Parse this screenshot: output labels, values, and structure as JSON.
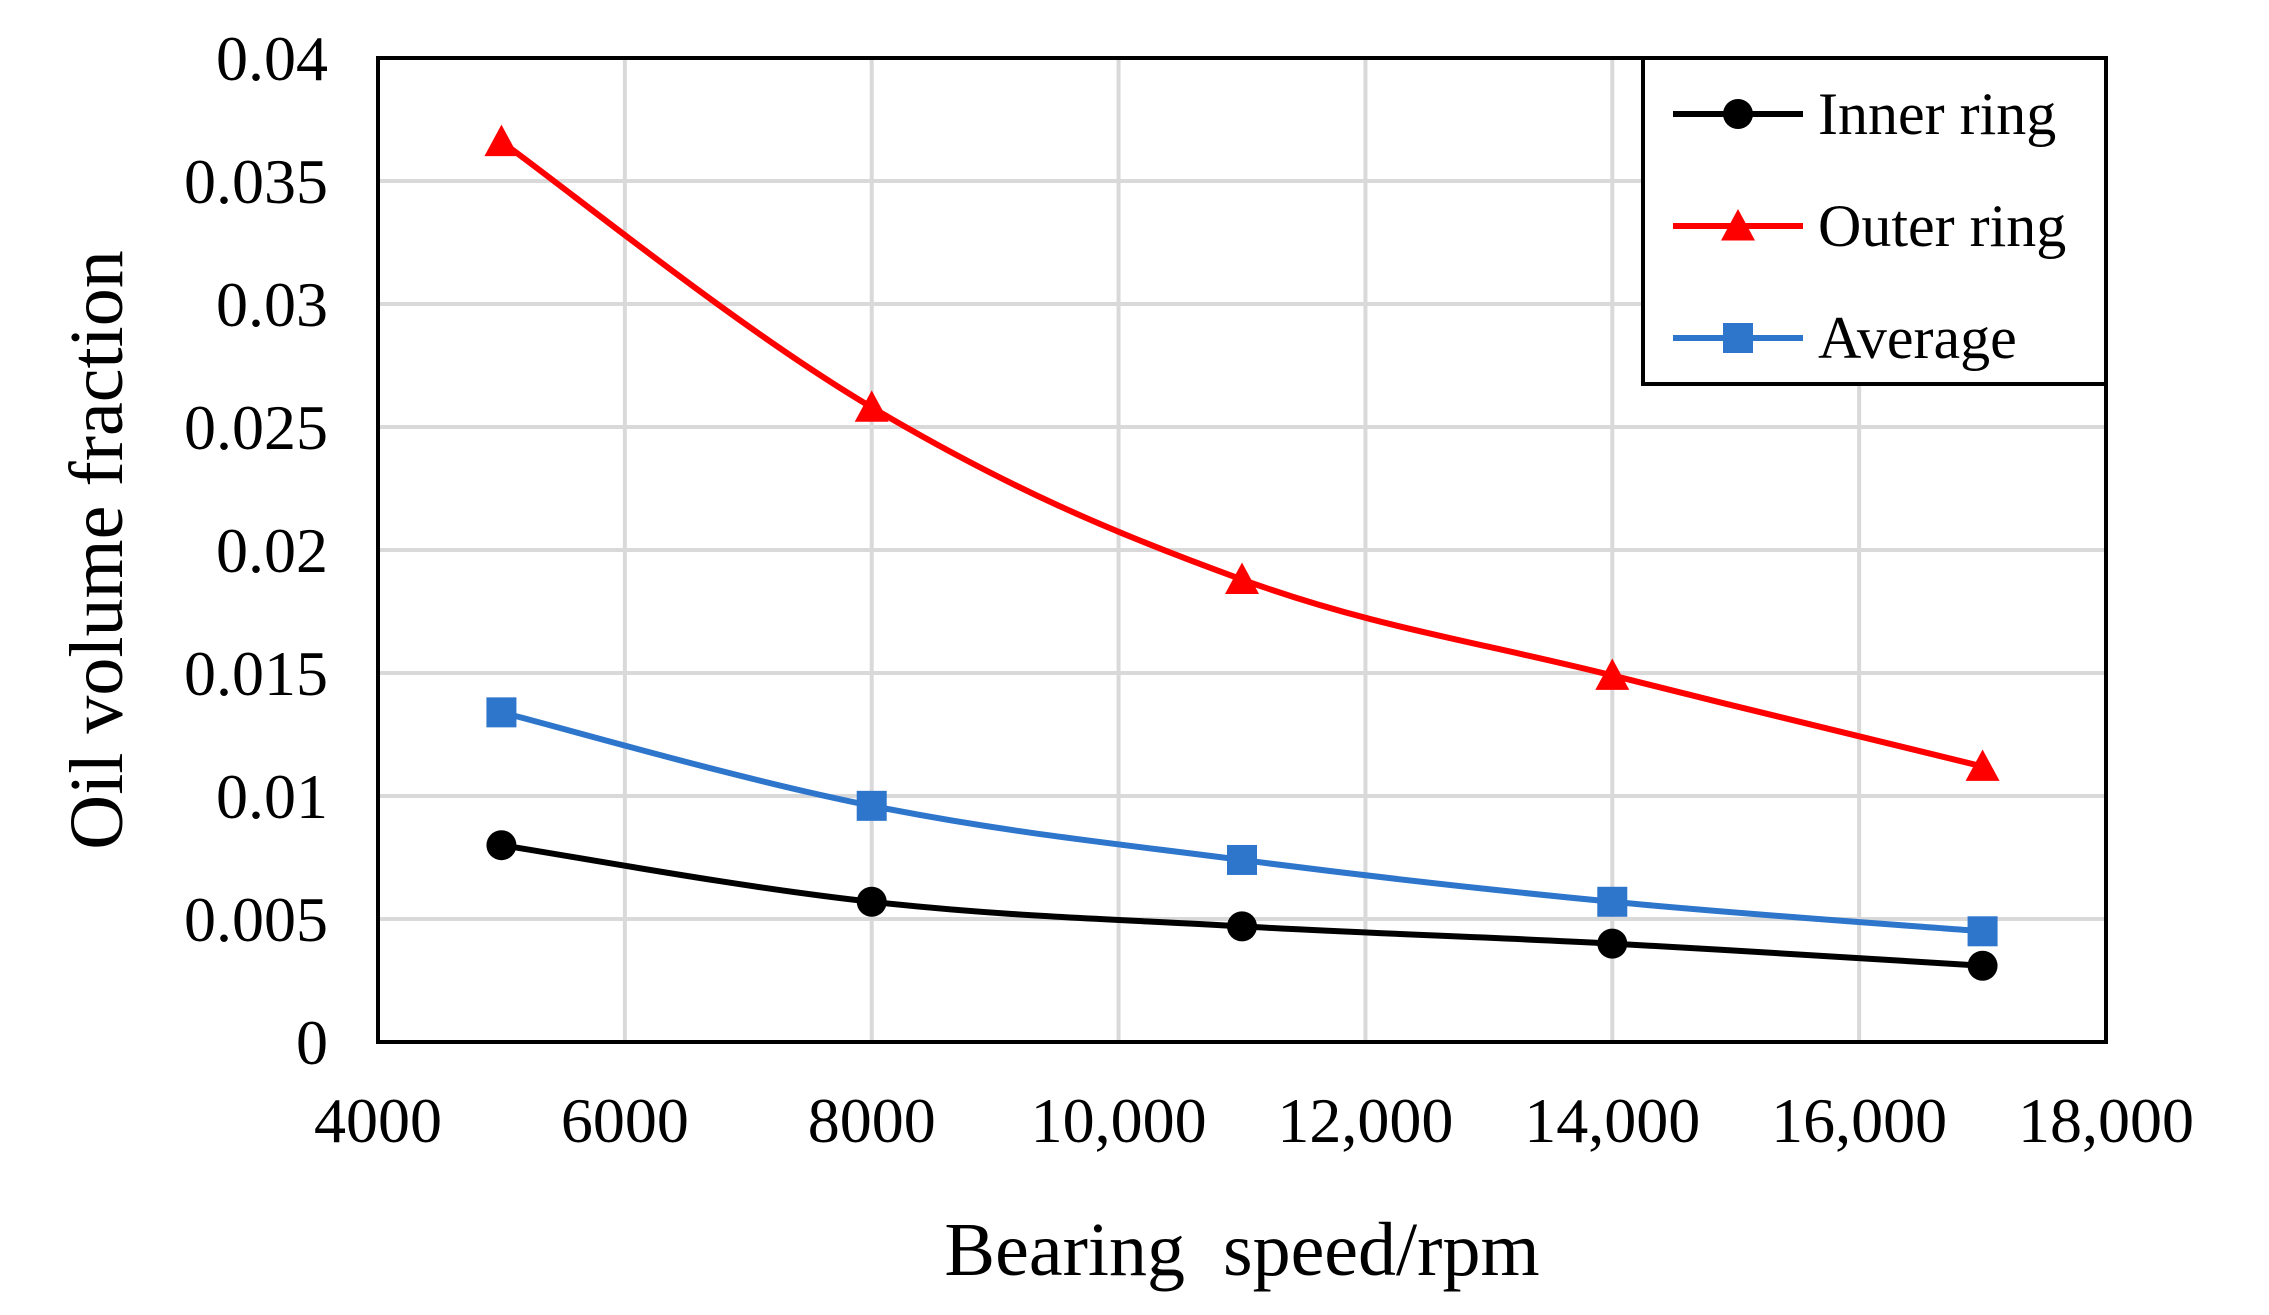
{
  "chart_data": {
    "type": "line",
    "title": "",
    "xlabel": "Bearing  speed/rpm",
    "ylabel": "Oil volume fraction",
    "xlim": [
      4000,
      18000
    ],
    "ylim": [
      0,
      0.04
    ],
    "grid": true,
    "legend_position": "top-right",
    "x_ticks": [
      {
        "value": 4000,
        "label": "4000"
      },
      {
        "value": 6000,
        "label": "6000"
      },
      {
        "value": 8000,
        "label": "8000"
      },
      {
        "value": 10000,
        "label": "10,000"
      },
      {
        "value": 12000,
        "label": "12,000"
      },
      {
        "value": 14000,
        "label": "14,000"
      },
      {
        "value": 16000,
        "label": "16,000"
      },
      {
        "value": 18000,
        "label": "18,000"
      }
    ],
    "y_ticks": [
      {
        "value": 0,
        "label": "0"
      },
      {
        "value": 0.005,
        "label": "0.005"
      },
      {
        "value": 0.01,
        "label": "0.01"
      },
      {
        "value": 0.015,
        "label": "0.015"
      },
      {
        "value": 0.02,
        "label": "0.02"
      },
      {
        "value": 0.025,
        "label": "0.025"
      },
      {
        "value": 0.03,
        "label": "0.03"
      },
      {
        "value": 0.035,
        "label": "0.035"
      },
      {
        "value": 0.04,
        "label": "0.04"
      }
    ],
    "x": [
      5000,
      8000,
      11000,
      14000,
      17000
    ],
    "series": [
      {
        "name": "Inner ring",
        "color": "#000000",
        "marker": "circle",
        "values": [
          0.008,
          0.0057,
          0.0047,
          0.004,
          0.0031
        ]
      },
      {
        "name": "Outer ring",
        "color": "#ff0000",
        "marker": "triangle",
        "values": [
          0.0366,
          0.0258,
          0.0188,
          0.0149,
          0.0112
        ]
      },
      {
        "name": "Average",
        "color": "#2e75cc",
        "marker": "square",
        "values": [
          0.0134,
          0.0096,
          0.0074,
          0.0057,
          0.0045
        ]
      }
    ]
  }
}
